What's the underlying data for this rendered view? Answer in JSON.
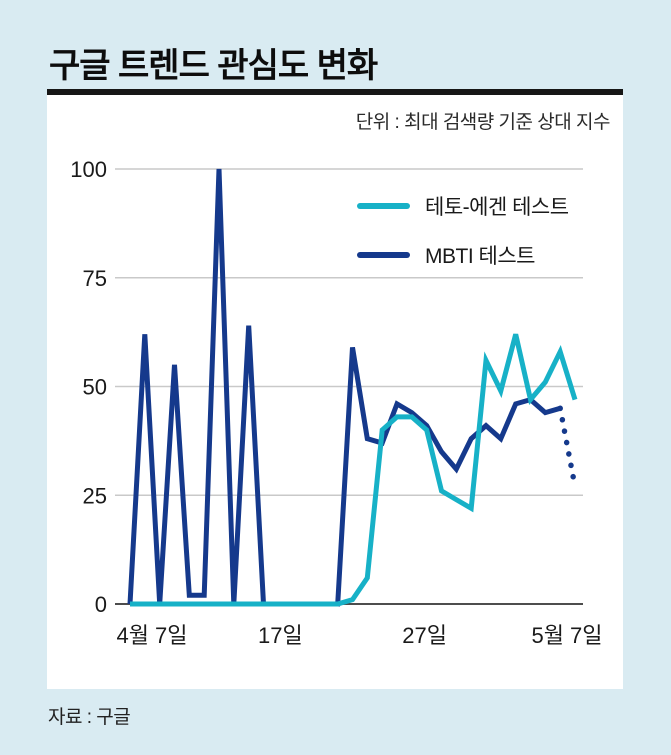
{
  "header": {
    "title": "구글 트렌드 관심도 변화"
  },
  "chart": {
    "unit_label": "단위 : 최대 검색량 기준 상대 지수"
  },
  "legend": {
    "items": [
      {
        "label": "테토-에겐 테스트",
        "color": "#17b1c7"
      },
      {
        "label": "MBTI 테스트",
        "color": "#15398c"
      }
    ]
  },
  "footer": {
    "source": "자료 : 구글"
  },
  "colors": {
    "background": "#d9ebf2",
    "card": "#ffffff",
    "title_rule": "#161616",
    "grid": "#c9c9c9",
    "axis": "#4d4d4d",
    "tick_text": "#1a1a1a",
    "teto": "#17b1c7",
    "mbti": "#15398c"
  },
  "chart_data": {
    "type": "line",
    "title": "구글 트렌드 관심도 변화",
    "unit": "최대 검색량 기준 상대 지수",
    "x_description": "일별 데이터, 4월 7일부터 5월 7일까지 (31일)",
    "x_tick_labels": [
      "4월 7일",
      "17일",
      "27일",
      "5월 7일"
    ],
    "x_tick_day_index": [
      0,
      10,
      20,
      30
    ],
    "ylim": [
      0,
      100
    ],
    "yticks": [
      0,
      25,
      50,
      75,
      100
    ],
    "grid": "horizontal",
    "legend_position": "top-right-inside",
    "series": [
      {
        "name": "MBTI 테스트",
        "color": "#15398c",
        "style": "solid",
        "values": [
          0,
          62,
          0,
          55,
          2,
          2,
          100,
          0,
          64,
          0,
          0,
          0,
          0,
          0,
          0,
          59,
          38,
          37,
          46,
          44,
          41,
          35,
          31,
          38,
          41,
          38,
          46,
          47,
          44,
          45,
          null
        ]
      },
      {
        "name": "MBTI 테스트 (부분 데이터, 점선)",
        "color": "#15398c",
        "style": "dotted",
        "values": [
          null,
          null,
          null,
          null,
          null,
          null,
          null,
          null,
          null,
          null,
          null,
          null,
          null,
          null,
          null,
          null,
          null,
          null,
          null,
          null,
          null,
          null,
          null,
          null,
          null,
          null,
          null,
          null,
          null,
          45,
          27
        ]
      },
      {
        "name": "테토-에겐 테스트",
        "color": "#17b1c7",
        "style": "solid",
        "values": [
          0,
          0,
          0,
          0,
          0,
          0,
          0,
          0,
          0,
          0,
          0,
          0,
          0,
          0,
          0,
          1,
          6,
          40,
          43,
          43,
          40,
          26,
          24,
          22,
          56,
          49,
          62,
          47,
          51,
          58,
          47
        ]
      }
    ]
  }
}
